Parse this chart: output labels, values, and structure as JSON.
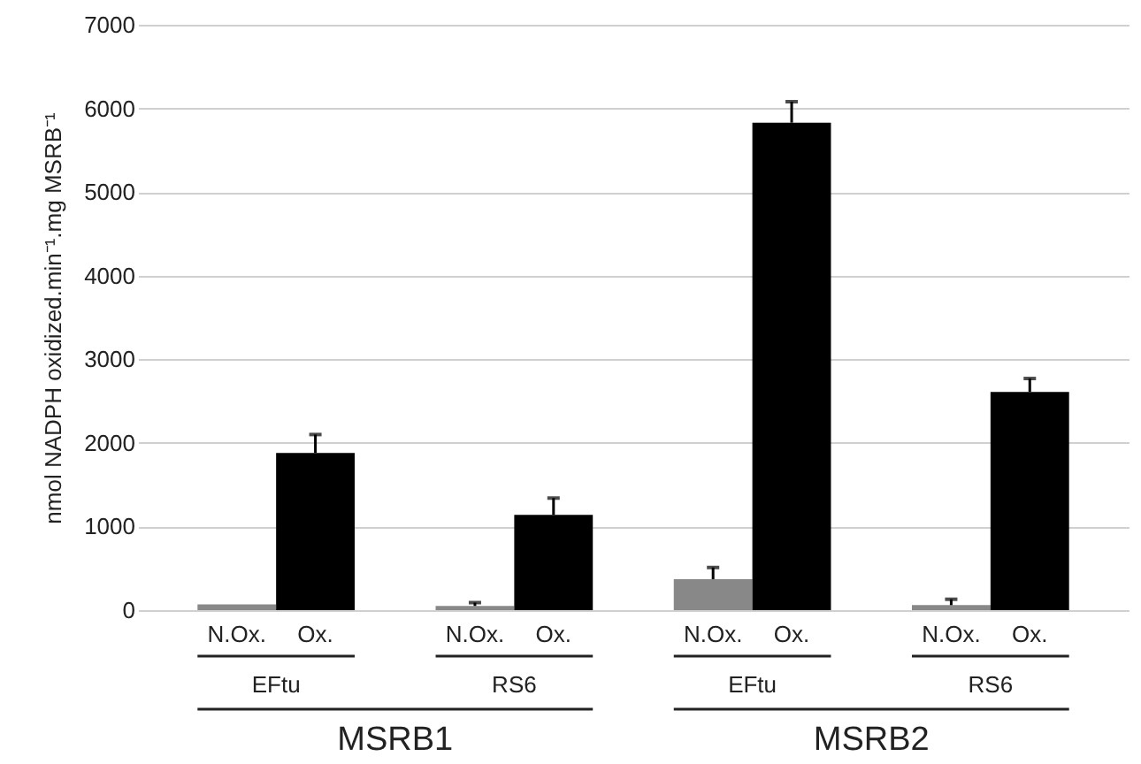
{
  "chart_data": {
    "type": "bar",
    "ylabel": "nmol NADPH oxidized.min⁻¹.mg MSRB⁻¹",
    "categories": [
      "EFtu",
      "RS6",
      "EFtu",
      "RS6"
    ],
    "series": [
      {
        "name": "N.Ox.",
        "color": "#888888",
        "values": [
          70,
          50,
          370,
          60
        ],
        "errors": [
          null,
          [
            50,
            90
          ],
          [
            370,
            510
          ],
          [
            60,
            130
          ]
        ]
      },
      {
        "name": "Ox.",
        "color": "#000000",
        "values": [
          1880,
          1140,
          5830,
          2610
        ],
        "errors": [
          [
            1880,
            2100
          ],
          [
            1140,
            1340
          ],
          [
            5830,
            6080
          ],
          [
            2610,
            2770
          ]
        ]
      }
    ],
    "ylim": [
      0,
      7000
    ],
    "yticks": [
      0,
      1000,
      2000,
      3000,
      4000,
      5000,
      6000,
      7000
    ],
    "grid": "y",
    "annotations": [
      "MSRB1",
      "MSRB2"
    ]
  }
}
